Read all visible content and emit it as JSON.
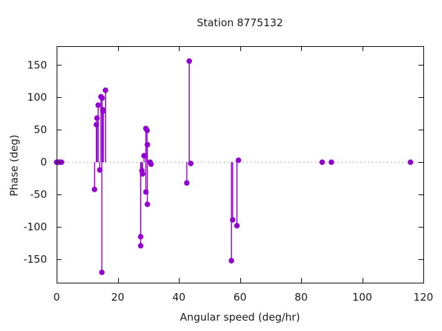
{
  "window": {
    "background": "#ffffff"
  },
  "chart_data": {
    "type": "scatter",
    "style": "impulses-with-points",
    "title": "Station 8775132",
    "xlabel": "Angular speed (deg/hr)",
    "ylabel": "Phase (deg)",
    "xlim": [
      0,
      120
    ],
    "ylim": [
      -186,
      179
    ],
    "xticks": [
      0,
      20,
      40,
      60,
      80,
      100,
      120
    ],
    "yticks": [
      -150,
      -100,
      -50,
      0,
      50,
      100,
      150
    ],
    "grid": false,
    "legend": "none",
    "zero_line": {
      "shown": true,
      "style": "dotted",
      "color": "#8c8c8c"
    },
    "colors": {
      "series": "#9400d3",
      "axis": "#000000",
      "text": "#1a1a1a"
    },
    "points": [
      [
        0,
        0
      ],
      [
        0.4,
        0
      ],
      [
        0.8,
        0
      ],
      [
        1.2,
        0
      ],
      [
        1.6,
        0
      ],
      [
        12.4,
        -42
      ],
      [
        13.0,
        58
      ],
      [
        13.2,
        68
      ],
      [
        13.6,
        88
      ],
      [
        14.1,
        -12
      ],
      [
        14.5,
        101
      ],
      [
        14.8,
        -170
      ],
      [
        14.9,
        99
      ],
      [
        15.1,
        81
      ],
      [
        15.3,
        79
      ],
      [
        16.0,
        111
      ],
      [
        27.5,
        -115
      ],
      [
        27.5,
        -129
      ],
      [
        27.9,
        -13
      ],
      [
        28.1,
        -18
      ],
      [
        28.6,
        10
      ],
      [
        29.2,
        52
      ],
      [
        29.2,
        -46
      ],
      [
        29.6,
        49
      ],
      [
        29.7,
        27
      ],
      [
        29.7,
        -65
      ],
      [
        30.6,
        0
      ],
      [
        30.9,
        -3
      ],
      [
        42.6,
        -32
      ],
      [
        43.4,
        156
      ],
      [
        43.9,
        -2
      ],
      [
        57.2,
        -152
      ],
      [
        57.6,
        -89
      ],
      [
        59.0,
        -98
      ],
      [
        59.5,
        3
      ],
      [
        86.9,
        0
      ],
      [
        89.9,
        0
      ],
      [
        115.8,
        0
      ]
    ]
  }
}
